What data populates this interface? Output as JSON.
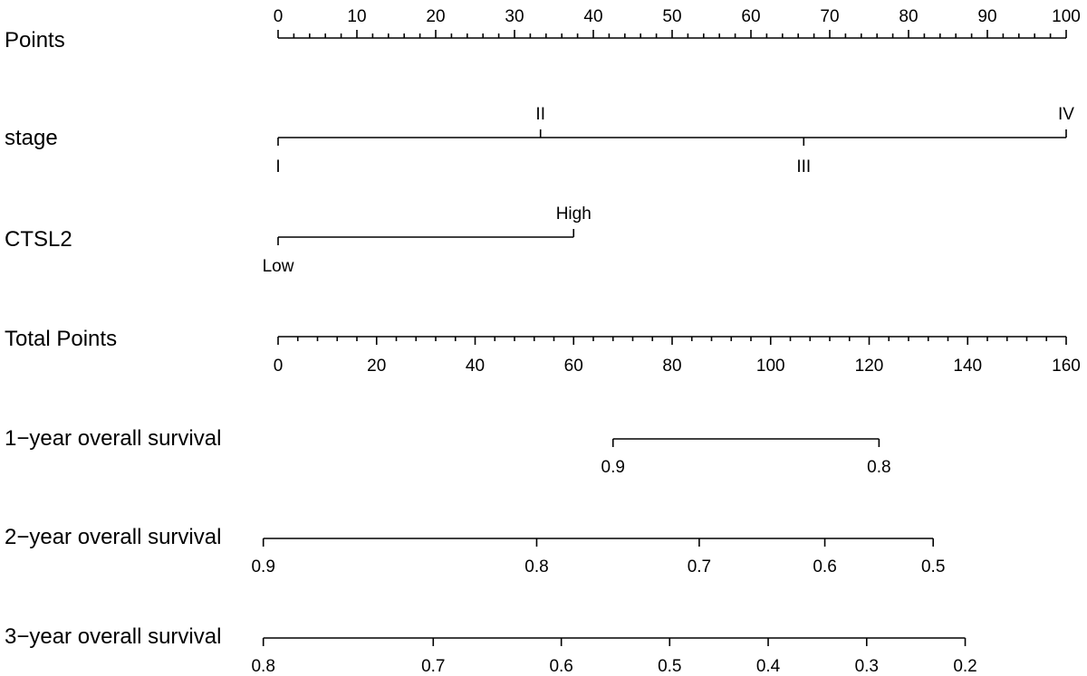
{
  "chart_data": {
    "type": "nomogram",
    "rows": [
      {
        "label": "Points",
        "domain": [
          0,
          100
        ],
        "major_ticks": [
          {
            "value": 0,
            "label": "0"
          },
          {
            "value": 10,
            "label": "10"
          },
          {
            "value": 20,
            "label": "20"
          },
          {
            "value": 30,
            "label": "30"
          },
          {
            "value": 40,
            "label": "40"
          },
          {
            "value": 50,
            "label": "50"
          },
          {
            "value": 60,
            "label": "60"
          },
          {
            "value": 70,
            "label": "70"
          },
          {
            "value": 80,
            "label": "80"
          },
          {
            "value": 90,
            "label": "90"
          },
          {
            "value": 100,
            "label": "100"
          }
        ],
        "minor_step": 2,
        "labels_position": "above"
      },
      {
        "label": "stage",
        "domain": [
          0,
          100
        ],
        "major_ticks": [
          {
            "value": 0,
            "label": "I",
            "side": "below"
          },
          {
            "value": 33.3,
            "label": "II",
            "side": "above"
          },
          {
            "value": 66.7,
            "label": "III",
            "side": "below"
          },
          {
            "value": 100,
            "label": "IV",
            "side": "above"
          }
        ]
      },
      {
        "label": "CTSL2",
        "domain": [
          0,
          37.5
        ],
        "major_ticks": [
          {
            "value": 0,
            "label": "Low",
            "side": "below"
          },
          {
            "value": 37.5,
            "label": "High",
            "side": "above"
          }
        ]
      },
      {
        "label": "Total Points",
        "domain": [
          0,
          160
        ],
        "major_ticks": [
          {
            "value": 0,
            "label": "0"
          },
          {
            "value": 20,
            "label": "20"
          },
          {
            "value": 40,
            "label": "40"
          },
          {
            "value": 60,
            "label": "60"
          },
          {
            "value": 80,
            "label": "80"
          },
          {
            "value": 100,
            "label": "100"
          },
          {
            "value": 120,
            "label": "120"
          },
          {
            "value": 140,
            "label": "140"
          },
          {
            "value": 160,
            "label": "160"
          }
        ],
        "minor_step": 4,
        "labels_position": "below"
      },
      {
        "label": "1−year overall survival",
        "major_ticks": [
          {
            "total_points": 68,
            "label": "0.9"
          },
          {
            "total_points": 122,
            "label": "0.8"
          }
        ],
        "labels_position": "below"
      },
      {
        "label": "2−year overall survival",
        "major_ticks": [
          {
            "total_points": -3,
            "label": "0.9"
          },
          {
            "total_points": 52.5,
            "label": "0.8"
          },
          {
            "total_points": 85.5,
            "label": "0.7"
          },
          {
            "total_points": 111,
            "label": "0.6"
          },
          {
            "total_points": 133,
            "label": "0.5"
          }
        ],
        "labels_position": "below"
      },
      {
        "label": "3−year overall survival",
        "major_ticks": [
          {
            "total_points": -3,
            "label": "0.8"
          },
          {
            "total_points": 31.5,
            "label": "0.7"
          },
          {
            "total_points": 57.5,
            "label": "0.6"
          },
          {
            "total_points": 79.5,
            "label": "0.5"
          },
          {
            "total_points": 99.5,
            "label": "0.4"
          },
          {
            "total_points": 119.5,
            "label": "0.3"
          },
          {
            "total_points": 139.5,
            "label": "0.2"
          }
        ],
        "labels_position": "below"
      }
    ]
  }
}
